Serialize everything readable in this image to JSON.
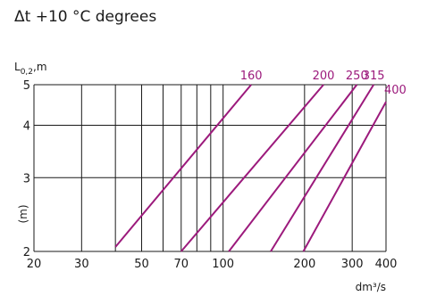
{
  "chart_data": {
    "type": "line",
    "title": "Δt +10 °C degrees",
    "ylabel_main": "L",
    "ylabel_sub": "0,2",
    "ylabel_unit": ",m",
    "ylabel_side": "(m)",
    "xlabel": "dm³/s",
    "x_scale": "log",
    "y_scale": "log",
    "xlim": [
      20,
      400
    ],
    "ylim": [
      2,
      5
    ],
    "x_ticks": [
      20,
      30,
      50,
      70,
      100,
      200,
      300,
      400
    ],
    "x_minor_gridlines": [
      40,
      60,
      80,
      90
    ],
    "y_ticks": [
      2,
      3,
      4,
      5
    ],
    "grid": true,
    "series_color": "#9c1a7c",
    "series": [
      {
        "name": "160",
        "points": [
          [
            40,
            2.05
          ],
          [
            127,
            5
          ]
        ]
      },
      {
        "name": "200",
        "points": [
          [
            70,
            2.0
          ],
          [
            235,
            5
          ]
        ]
      },
      {
        "name": "250",
        "points": [
          [
            105,
            2.0
          ],
          [
            312,
            5
          ]
        ]
      },
      {
        "name": "315",
        "points": [
          [
            150,
            2.0
          ],
          [
            360,
            5
          ]
        ]
      },
      {
        "name": "400",
        "points": [
          [
            198,
            2.0
          ],
          [
            400,
            4.55
          ]
        ]
      }
    ]
  }
}
